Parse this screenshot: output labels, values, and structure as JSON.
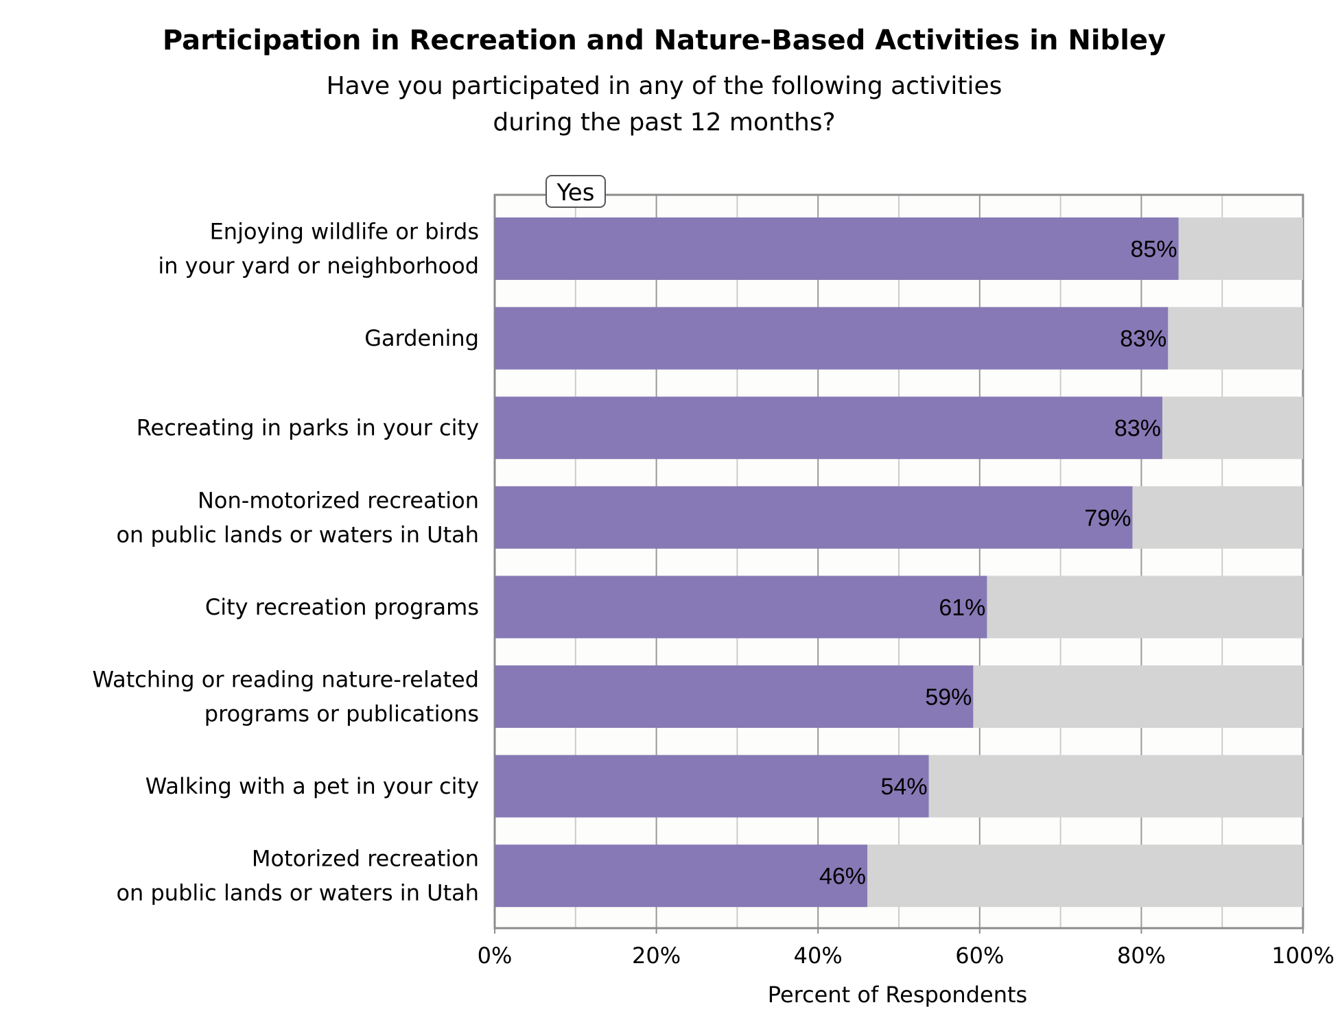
{
  "chart_data": {
    "type": "bar",
    "orientation": "horizontal",
    "stacked_to": 100,
    "title": "Participation in Recreation and Nature-Based Activities in Nibley",
    "subtitle_lines": [
      "Have you participated in any of the following activities",
      "during the past 12 months?"
    ],
    "xlabel": "Percent of Respondents",
    "xlim": [
      0,
      100
    ],
    "x_ticks": [
      "0%",
      "20%",
      "40%",
      "60%",
      "80%",
      "100%"
    ],
    "grid": true,
    "legend": {
      "placement": "top-left",
      "entries": [
        "Yes"
      ]
    },
    "categories": [
      [
        "Enjoying wildlife or birds",
        "in your yard or neighborhood"
      ],
      [
        "Gardening"
      ],
      [
        "Recreating in parks in your city"
      ],
      [
        "Non-motorized recreation",
        "on public lands or waters in Utah"
      ],
      [
        "City recreation programs"
      ],
      [
        "Watching or reading nature-related",
        "programs or publications"
      ],
      [
        "Walking with a pet in your city"
      ],
      [
        "Motorized recreation",
        "on public lands or waters in Utah"
      ]
    ],
    "series": [
      {
        "name": "Yes",
        "values": [
          84.6,
          83.3,
          82.6,
          78.9,
          60.9,
          59.2,
          53.7,
          46.1
        ],
        "labels": [
          "85%",
          "83%",
          "83%",
          "79%",
          "61%",
          "59%",
          "54%",
          "46%"
        ]
      }
    ],
    "remainder": {
      "values": [
        15.4,
        16.7,
        17.4,
        21.1,
        39.1,
        40.8,
        46.3,
        53.9
      ]
    },
    "colors": {
      "yes": "#8779b5",
      "remainder": "#d4d4d4",
      "plot_bg": "#fdfdfb",
      "grid_major": "#999999",
      "grid_minor": "#cccccc",
      "frame": "#8c8c8c"
    }
  }
}
